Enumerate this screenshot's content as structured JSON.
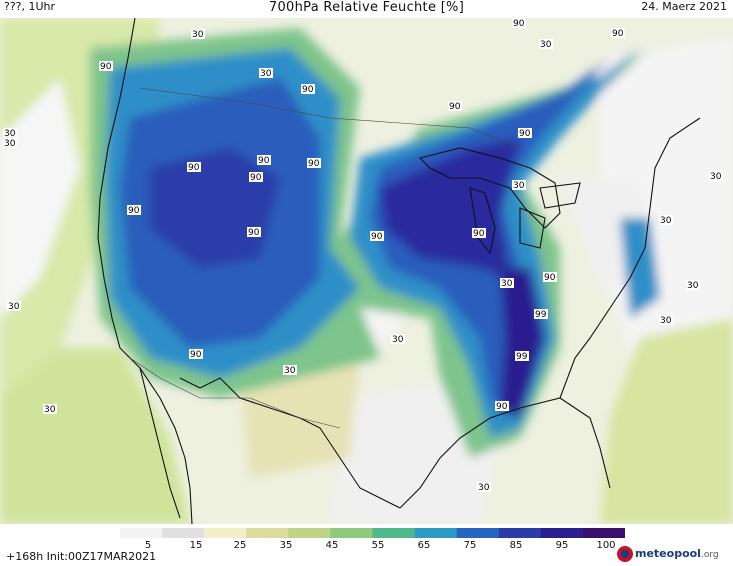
{
  "header": {
    "left": "???, 1Uhr",
    "title": "700hPa Relative Feuchte [%]",
    "date": "24. Maerz 2021"
  },
  "map": {
    "labels": [
      "90",
      "90",
      "90",
      "90",
      "90",
      "90",
      "90",
      "90",
      "90",
      "90",
      "90",
      "90",
      "90",
      "90",
      "90",
      "90",
      "90",
      "30",
      "30",
      "30",
      "30",
      "30",
      "30",
      "30",
      "30",
      "30",
      "30",
      "30",
      "30",
      "30",
      "30",
      "30",
      "30",
      "99",
      "99"
    ]
  },
  "colorbar": {
    "ticks": [
      "5",
      "15",
      "25",
      "35",
      "45",
      "55",
      "65",
      "75",
      "85",
      "95",
      "100"
    ],
    "colors": [
      "#f4f4f4",
      "#e0e0e0",
      "#f3f0c8",
      "#dcdb9c",
      "#bfd489",
      "#8fc97d",
      "#4fb88d",
      "#2e9bc4",
      "#2766c0",
      "#2b3ca8",
      "#2b1e8f",
      "#3a0f6c"
    ]
  },
  "footer": {
    "run": "+168h  Init:00Z17MAR2021",
    "logo_name": "meteopool",
    "logo_tld": ".org"
  }
}
